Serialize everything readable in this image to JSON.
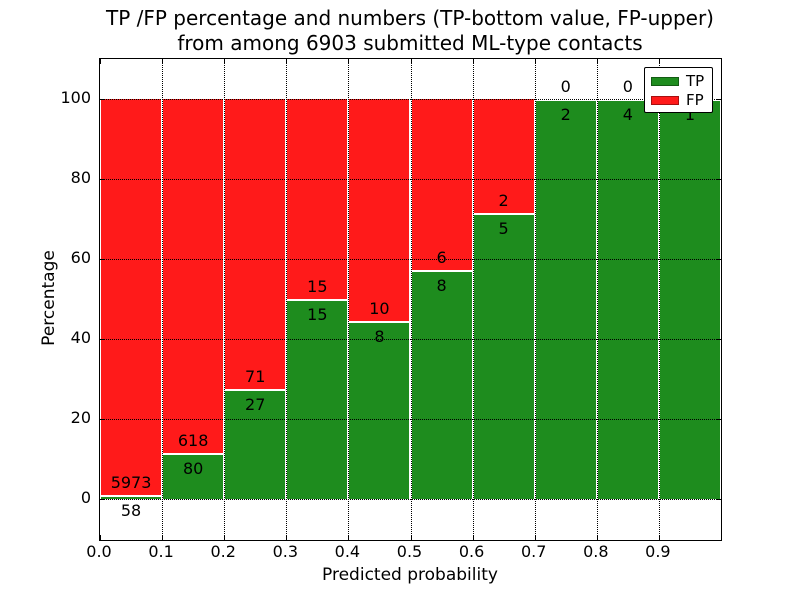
{
  "figure": {
    "title_line1": "TP /FP percentage and numbers (TP-bottom value, FP-upper)",
    "title_line2": "from among 6903 submitted ML-type contacts"
  },
  "chart_data": {
    "type": "bar",
    "stacked": true,
    "title": "TP /FP percentage and numbers (TP-bottom value, FP-upper) from among 6903 submitted ML-type contacts",
    "xlabel": "Predicted probability",
    "ylabel": "Percentage",
    "x_tick_labels": [
      "0.0",
      "0.1",
      "0.2",
      "0.3",
      "0.4",
      "0.5",
      "0.6",
      "0.7",
      "0.8",
      "0.9"
    ],
    "y_tick_values": [
      0,
      20,
      40,
      60,
      80,
      100
    ],
    "xlim": [
      0.0,
      1.0
    ],
    "ylim": [
      -10.25,
      110
    ],
    "grid": {
      "style": "dotted",
      "color": "#000000"
    },
    "total_contacts": 6903,
    "colors": {
      "tp": "#1e8c1e",
      "fp": "#ff1a1a",
      "bar_edge": "#ffffff"
    },
    "legend": {
      "position": "upper right",
      "entries": [
        {
          "name": "TP",
          "color": "#1e8c1e"
        },
        {
          "name": "FP",
          "color": "#ff1a1a"
        }
      ]
    },
    "categories": [
      "0.0-0.1",
      "0.1-0.2",
      "0.2-0.3",
      "0.3-0.4",
      "0.4-0.5",
      "0.5-0.6",
      "0.6-0.7",
      "0.7-0.8",
      "0.8-0.9",
      "0.9-1.0"
    ],
    "series": [
      {
        "name": "TP",
        "counts": [
          58,
          80,
          27,
          15,
          8,
          8,
          5,
          2,
          4,
          1
        ],
        "percentages": [
          0.96,
          11.46,
          27.55,
          50.0,
          44.44,
          57.14,
          71.43,
          100.0,
          100.0,
          100.0
        ]
      },
      {
        "name": "FP",
        "counts": [
          5973,
          618,
          71,
          15,
          10,
          6,
          2,
          0,
          0,
          0
        ],
        "percentages": [
          99.04,
          88.54,
          72.45,
          50.0,
          55.56,
          42.86,
          28.57,
          0.0,
          0.0,
          0.0
        ]
      }
    ]
  }
}
